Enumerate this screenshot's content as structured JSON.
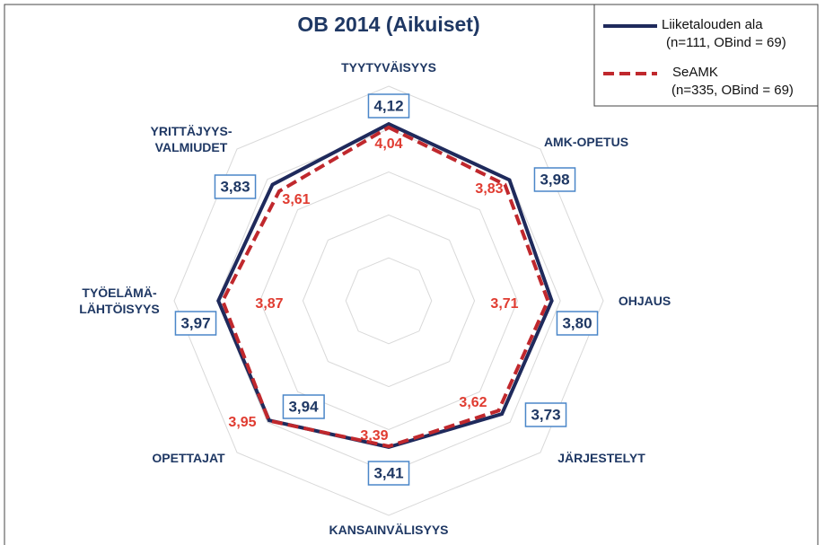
{
  "chart_data": {
    "type": "radar",
    "title": "OB 2014 (Aikuiset)",
    "categories": [
      "TYYTYVÄISYYS",
      "AMK-OPETUS",
      "OHJAUS",
      "JÄRJESTELYT",
      "KANSAINVÄLISYYS",
      "OPETTAJAT",
      "TYÖELÄMÄ-\nLÄHTÖISYYS",
      "YRITTÄJYYS-\nVALMIUDET"
    ],
    "rlim": [
      0,
      5
    ],
    "rticks": [
      1,
      2,
      3,
      4,
      5
    ],
    "grid": true,
    "legend": "upper right",
    "series": [
      {
        "name": "Liiketalouden ala",
        "sample": "(n=111, OBind = 69)",
        "color": "#1f2a5c",
        "dash": false,
        "values": [
          4.12,
          3.98,
          3.8,
          3.73,
          3.41,
          3.94,
          3.97,
          3.83
        ],
        "value_labels": [
          "4,12",
          "3,98",
          "3,80",
          "3,73",
          "3,41",
          "3,94",
          "3,97",
          "3,83"
        ]
      },
      {
        "name": "SeAMK",
        "sample": "(n=335, OBind = 69)",
        "color": "#c0282d",
        "dash": true,
        "values": [
          4.04,
          3.83,
          3.71,
          3.62,
          3.39,
          3.95,
          3.87,
          3.61
        ],
        "value_labels": [
          "4,04",
          "3,83",
          "3,71",
          "3,62",
          "3,39",
          "3,95",
          "3,87",
          "3,61"
        ]
      }
    ]
  }
}
